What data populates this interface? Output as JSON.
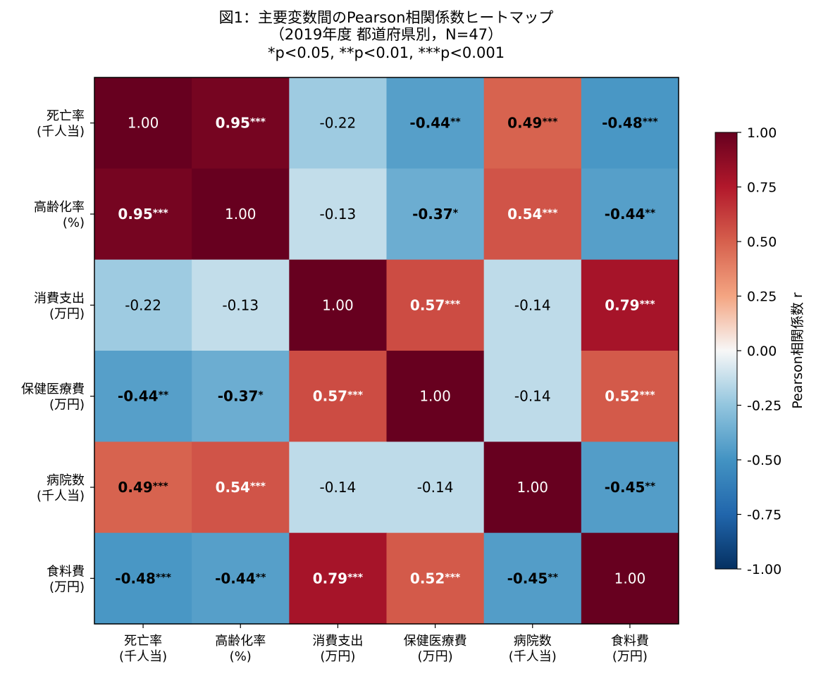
{
  "chart_data": {
    "type": "heatmap",
    "title": [
      "図1：主要変数間のPearson相関係数ヒートマップ",
      "（2019年度 都道府県別，N=47）",
      "*p<0.05, **p<0.01, ***p<0.001"
    ],
    "variables": [
      [
        "死亡率",
        "(千人当)"
      ],
      [
        "高齢化率",
        "(%)"
      ],
      [
        "消費支出",
        "(万円)"
      ],
      [
        "保健医療費",
        "(万円)"
      ],
      [
        "病院数",
        "(千人当)"
      ],
      [
        "食料費",
        "(万円)"
      ]
    ],
    "matrix": [
      [
        1.0,
        0.95,
        -0.22,
        -0.44,
        0.49,
        -0.48
      ],
      [
        0.95,
        1.0,
        -0.13,
        -0.37,
        0.54,
        -0.44
      ],
      [
        -0.22,
        -0.13,
        1.0,
        0.57,
        -0.14,
        0.79
      ],
      [
        -0.44,
        -0.37,
        0.57,
        1.0,
        -0.14,
        0.52
      ],
      [
        0.49,
        0.54,
        -0.14,
        -0.14,
        1.0,
        -0.45
      ],
      [
        -0.48,
        -0.44,
        0.79,
        0.52,
        -0.45,
        1.0
      ]
    ],
    "stars": [
      [
        "",
        "***",
        "",
        "**",
        "***",
        "***"
      ],
      [
        "***",
        "",
        "",
        "*",
        "***",
        "**"
      ],
      [
        "",
        "",
        "",
        "***",
        "",
        "***"
      ],
      [
        "**",
        "*",
        "***",
        "",
        "",
        "***"
      ],
      [
        "***",
        "***",
        "",
        "",
        "",
        "**"
      ],
      [
        "***",
        "**",
        "***",
        "***",
        "**",
        ""
      ]
    ],
    "colorbar": {
      "label": "Pearson相関係数 r",
      "ticks": [
        "1.00",
        "0.75",
        "0.50",
        "0.25",
        "0.00",
        "-0.25",
        "-0.50",
        "-0.75",
        "-1.00"
      ],
      "range": [
        -1,
        1
      ],
      "colormap": "RdBu_r"
    }
  }
}
